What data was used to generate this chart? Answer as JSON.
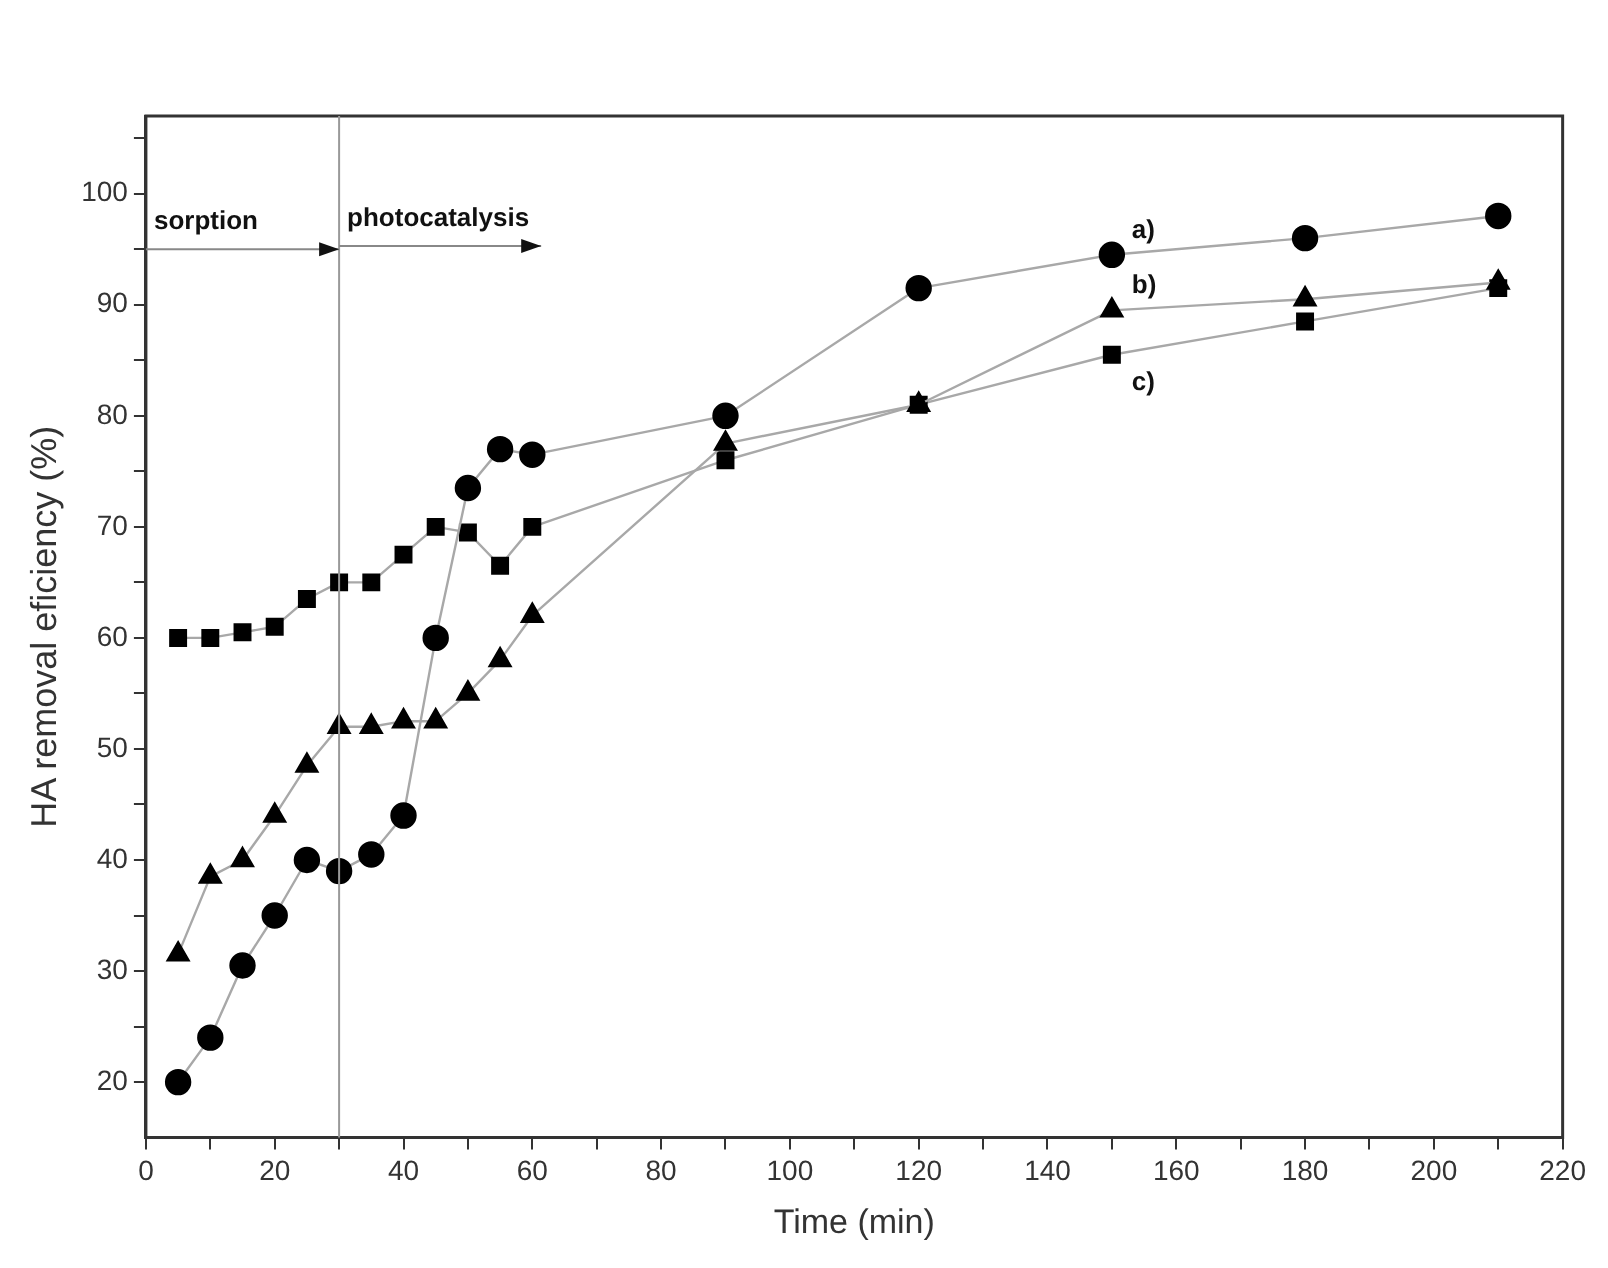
{
  "chart_data": {
    "type": "line",
    "xlabel": "Time (min)",
    "ylabel": "HA removal eficiency (%)",
    "x": [
      5,
      10,
      15,
      20,
      25,
      30,
      35,
      40,
      45,
      50,
      55,
      60,
      90,
      120,
      150,
      180,
      210
    ],
    "series": [
      {
        "name": "a)",
        "color": "#000000",
        "marker": "circle",
        "values": [
          20,
          24,
          30.5,
          35,
          40,
          39,
          40.5,
          44,
          60,
          73.5,
          77,
          76.5,
          80,
          91.5,
          94.5,
          96,
          98
        ]
      },
      {
        "name": "b)",
        "color": "#000000",
        "marker": "triangle",
        "values": [
          31.5,
          38.5,
          40,
          44,
          48.5,
          52,
          52,
          52.5,
          52.5,
          55,
          58,
          62,
          77.5,
          81,
          89.5,
          90.5,
          92
        ]
      },
      {
        "name": "c)",
        "color": "#000000",
        "marker": "square",
        "values": [
          60,
          60,
          60.5,
          61,
          63.5,
          65,
          65,
          67.5,
          70,
          69.5,
          66.5,
          70,
          76,
          81,
          85.5,
          88.5,
          91.5
        ]
      }
    ],
    "xlim": [
      0,
      220
    ],
    "xticks": [
      0,
      {
        "value": 10,
        "label": null
      },
      20,
      {
        "value": 30,
        "label": null
      },
      40,
      {
        "value": 50,
        "label": null
      },
      60,
      {
        "value": 70,
        "label": null
      },
      80,
      {
        "value": 90,
        "label": null
      },
      100,
      {
        "value": 110,
        "label": null
      },
      120,
      {
        "value": 130,
        "label": null
      },
      140,
      {
        "value": 150,
        "label": null
      },
      160,
      {
        "value": 170,
        "label": null
      },
      180,
      {
        "value": 190,
        "label": null
      },
      200,
      {
        "value": 210,
        "label": null
      },
      220
    ],
    "ylim": [
      15,
      107
    ],
    "yticks": [
      20,
      {
        "value": 25,
        "label": null
      },
      30,
      {
        "value": 35,
        "label": null
      },
      40,
      {
        "value": 45,
        "label": null
      },
      50,
      {
        "value": 55,
        "label": null
      },
      60,
      {
        "value": 65,
        "label": null
      },
      70,
      {
        "value": 75,
        "label": null
      },
      80,
      {
        "value": 85,
        "label": null
      },
      90,
      {
        "value": 95,
        "label": null
      },
      100,
      {
        "value": 105,
        "label": null
      }
    ],
    "ref_lines": [
      {
        "axis": "x",
        "value": 30,
        "color": "#999999"
      }
    ],
    "annotations": [
      {
        "text": "sorption",
        "x": 30,
        "y": 95
      },
      "photocatalysis"
    ],
    "grid": false,
    "legend": false
  }
}
